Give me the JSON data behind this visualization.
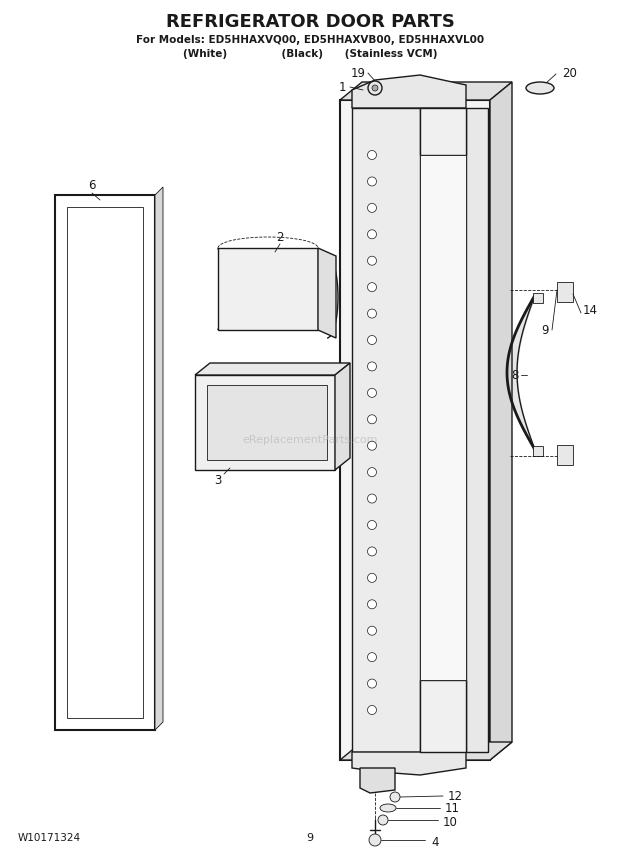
{
  "title": "REFRIGERATOR DOOR PARTS",
  "subtitle": "For Models: ED5HHAXVQ00, ED5HHAXVB00, ED5HHAXVL00",
  "subtitle2": "(White)               (Black)      (Stainless VCM)",
  "footer_left": "W10171324",
  "footer_center": "9",
  "bg_color": "#ffffff",
  "line_color": "#1a1a1a",
  "watermark": "eReplacementParts.com"
}
